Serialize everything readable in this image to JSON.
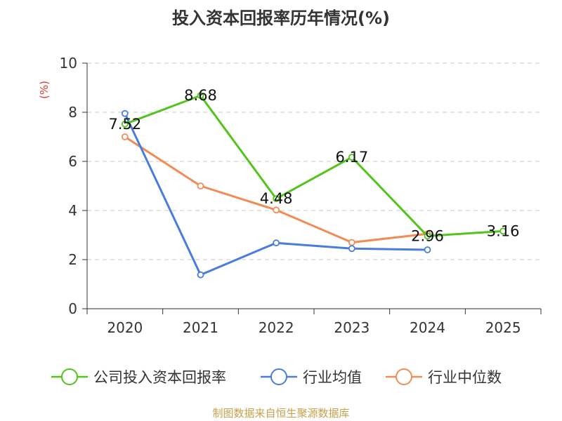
{
  "chart_data": {
    "type": "line",
    "title": "投入资本回报率历年情况(%)",
    "ylabel": "(%)",
    "categories": [
      "2020",
      "2021",
      "2022",
      "2023",
      "2024",
      "2025"
    ],
    "ylim": [
      0,
      10
    ],
    "yticks": [
      0,
      2,
      4,
      6,
      8,
      10
    ],
    "grid": true,
    "legend": "bottom",
    "series": [
      {
        "name": "公司投入资本回报率",
        "color": "#52c41a",
        "values": [
          7.52,
          8.68,
          4.48,
          6.17,
          2.96,
          3.16
        ],
        "labels": [
          "7.52",
          "8.68",
          "4.48",
          "6.17",
          "2.96",
          "3.16"
        ]
      },
      {
        "name": "行业均值",
        "color": "#4a7ddb",
        "values": [
          7.95,
          1.38,
          2.68,
          2.45,
          2.4,
          null
        ]
      },
      {
        "name": "行业中位数",
        "color": "#f28c57",
        "values": [
          7.0,
          5.0,
          4.02,
          2.7,
          3.05,
          null
        ]
      }
    ],
    "source": "制图数据来自恒生聚源数据库"
  }
}
